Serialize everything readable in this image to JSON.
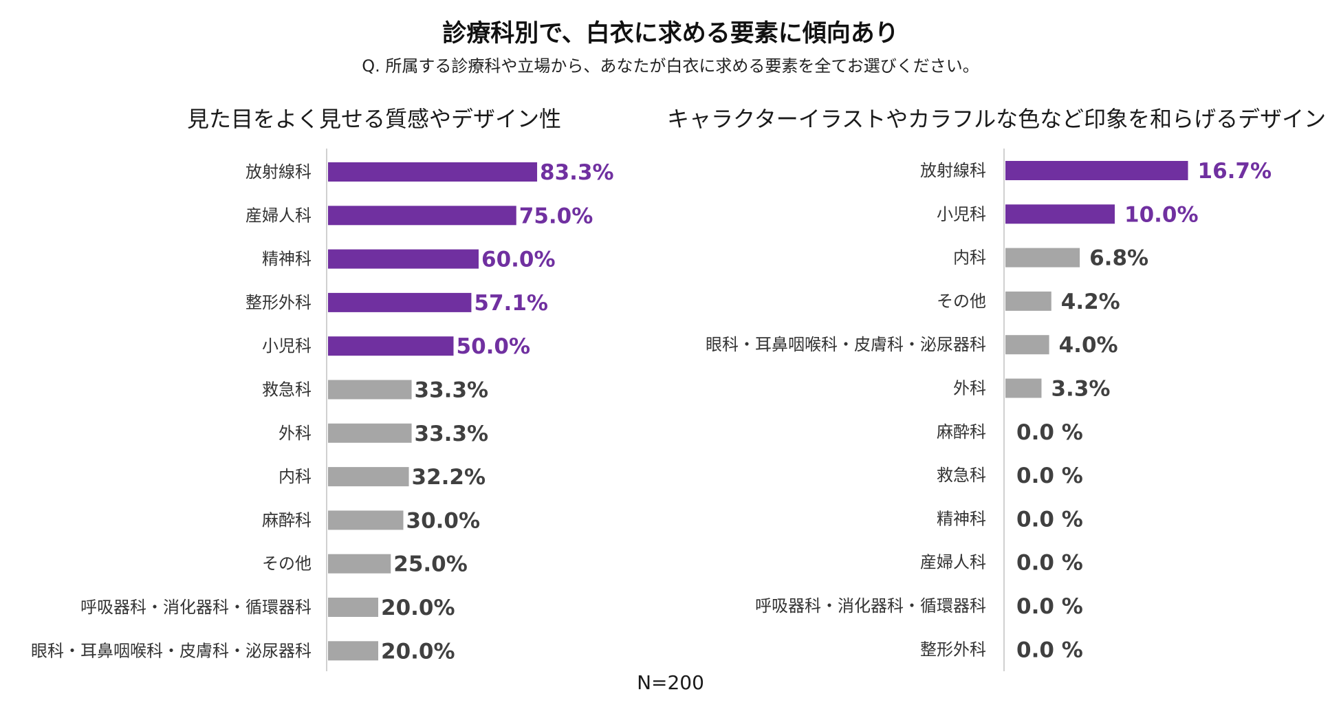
{
  "colors": {
    "highlight": "#7030A0",
    "normal": "#A6A6A6",
    "normal_text": "#404040",
    "axis": "#D0D0D0"
  },
  "title": "診療科別で、白衣に求める要素に傾向あり",
  "subtitle": "Q. 所属する診療科や立場から、あなたが白衣に求める要素を全てお選びください。",
  "footer": {
    "n_label": "N=200"
  },
  "chart_data": [
    {
      "type": "bar",
      "orientation": "horizontal",
      "title": "見た目をよく見せる質感やデザイン性",
      "categories": [
        "放射線科",
        "産婦人科",
        "精神科",
        "整形外科",
        "小児科",
        "救急科",
        "外科",
        "内科",
        "麻酔科",
        "その他",
        "呼吸器科・消化器科・循環器科",
        "眼科・耳鼻咽喉科・皮膚科・泌尿器科"
      ],
      "values": [
        83.3,
        75.0,
        60.0,
        57.1,
        50.0,
        33.3,
        33.3,
        32.2,
        30.0,
        25.0,
        20.0,
        20.0
      ],
      "value_labels": [
        "83.3%",
        "75.0%",
        "60.0%",
        "57.1%",
        "50.0%",
        "33.3%",
        "33.3%",
        "32.2%",
        "30.0%",
        "25.0%",
        "20.0%",
        "20.0%"
      ],
      "highlighted": [
        true,
        true,
        true,
        true,
        true,
        false,
        false,
        false,
        false,
        false,
        false,
        false
      ],
      "xlim": [
        0,
        100
      ],
      "unit": "%"
    },
    {
      "type": "bar",
      "orientation": "horizontal",
      "title": "キャラクターイラストやカラフルな色など印象を和らげるデザイン",
      "categories": [
        "放射線科",
        "小児科",
        "内科",
        "その他",
        "眼科・耳鼻咽喉科・皮膚科・泌尿器科",
        "外科",
        "麻酔科",
        "救急科",
        "精神科",
        "産婦人科",
        "呼吸器科・消化器科・循環器科",
        "整形外科"
      ],
      "values": [
        16.7,
        10.0,
        6.8,
        4.2,
        4.0,
        3.3,
        0.0,
        0.0,
        0.0,
        0.0,
        0.0,
        0.0
      ],
      "value_labels": [
        "16.7%",
        "10.0%",
        "6.8%",
        "4.2%",
        "4.0%",
        "3.3%",
        "0.0 %",
        "0.0 %",
        "0.0 %",
        "0.0 %",
        "0.0 %",
        "0.0 %"
      ],
      "highlighted": [
        true,
        true,
        false,
        false,
        false,
        false,
        false,
        false,
        false,
        false,
        false,
        false
      ],
      "xlim": [
        0,
        20
      ],
      "unit": "%"
    }
  ]
}
